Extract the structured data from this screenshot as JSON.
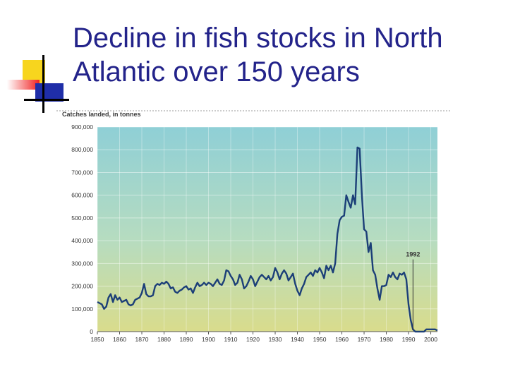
{
  "slide": {
    "title_line1": "Decline in fish stocks in North",
    "title_line2": "Atlantic over 150 years"
  },
  "colors": {
    "title": "#23238a",
    "series_line": "#1c3f78",
    "plot_top": "#8fcfd6",
    "plot_mid": "#b6dcc0",
    "plot_bottom": "#d9dc8c"
  },
  "chart_data": {
    "type": "line",
    "ylabel": "Catches landed, in tonnes",
    "xlabel": "",
    "xlim": [
      1850,
      2003
    ],
    "ylim": [
      0,
      900000
    ],
    "x_ticks": [
      "1850",
      "1860",
      "1870",
      "1880",
      "1890",
      "1900",
      "1910",
      "1920",
      "1930",
      "1940",
      "1950",
      "1960",
      "1970",
      "1980",
      "1990",
      "2000"
    ],
    "x_tick_values": [
      1850,
      1860,
      1870,
      1880,
      1890,
      1900,
      1910,
      1920,
      1930,
      1940,
      1950,
      1960,
      1970,
      1980,
      1990,
      2000
    ],
    "y_ticks": [
      "0",
      "100,000",
      "200,000",
      "300,000",
      "400,000",
      "500,000",
      "600,000",
      "700,000",
      "800,000",
      "900,000"
    ],
    "y_tick_values": [
      0,
      100000,
      200000,
      300000,
      400000,
      500000,
      600000,
      700000,
      800000,
      900000
    ],
    "grid": true,
    "annotations": [
      {
        "text": "1992",
        "x": 1992,
        "y": 330000
      }
    ],
    "series": [
      {
        "x": [
          1850,
          1851,
          1852,
          1853,
          1854,
          1855,
          1856,
          1857,
          1858,
          1859,
          1860,
          1861,
          1862,
          1863,
          1864,
          1865,
          1866,
          1867,
          1868,
          1869,
          1870,
          1871,
          1872,
          1873,
          1874,
          1875,
          1876,
          1877,
          1878,
          1879,
          1880,
          1881,
          1882,
          1883,
          1884,
          1885,
          1886,
          1887,
          1888,
          1889,
          1890,
          1891,
          1892,
          1893,
          1894,
          1895,
          1896,
          1897,
          1898,
          1899,
          1900,
          1901,
          1902,
          1903,
          1904,
          1905,
          1906,
          1907,
          1908,
          1909,
          1910,
          1911,
          1912,
          1913,
          1914,
          1915,
          1916,
          1917,
          1918,
          1919,
          1920,
          1921,
          1922,
          1923,
          1924,
          1925,
          1926,
          1927,
          1928,
          1929,
          1930,
          1931,
          1932,
          1933,
          1934,
          1935,
          1936,
          1937,
          1938,
          1939,
          1940,
          1941,
          1942,
          1943,
          1944,
          1945,
          1946,
          1947,
          1948,
          1949,
          1950,
          1951,
          1952,
          1953,
          1954,
          1955,
          1956,
          1957,
          1958,
          1959,
          1960,
          1961,
          1962,
          1963,
          1964,
          1965,
          1966,
          1967,
          1968,
          1969,
          1970,
          1971,
          1972,
          1973,
          1974,
          1975,
          1976,
          1977,
          1978,
          1979,
          1980,
          1981,
          1982,
          1983,
          1984,
          1985,
          1986,
          1987,
          1988,
          1989,
          1990,
          1991,
          1992,
          1993,
          1994,
          1995,
          1996,
          1997,
          1998,
          1999,
          2000,
          2001,
          2002,
          2003
        ],
        "y": [
          130000,
          125000,
          120000,
          100000,
          110000,
          150000,
          165000,
          130000,
          160000,
          140000,
          150000,
          130000,
          135000,
          140000,
          120000,
          115000,
          120000,
          140000,
          145000,
          150000,
          170000,
          210000,
          165000,
          155000,
          155000,
          160000,
          200000,
          210000,
          205000,
          215000,
          210000,
          220000,
          210000,
          190000,
          195000,
          175000,
          170000,
          180000,
          185000,
          195000,
          200000,
          185000,
          190000,
          170000,
          195000,
          215000,
          200000,
          205000,
          215000,
          205000,
          215000,
          210000,
          200000,
          215000,
          230000,
          210000,
          205000,
          225000,
          270000,
          265000,
          245000,
          230000,
          205000,
          215000,
          250000,
          230000,
          190000,
          200000,
          220000,
          245000,
          230000,
          200000,
          220000,
          240000,
          250000,
          240000,
          230000,
          245000,
          225000,
          240000,
          280000,
          260000,
          230000,
          255000,
          270000,
          255000,
          225000,
          240000,
          255000,
          210000,
          180000,
          160000,
          190000,
          210000,
          240000,
          250000,
          260000,
          245000,
          270000,
          260000,
          280000,
          260000,
          235000,
          290000,
          270000,
          290000,
          260000,
          300000,
          430000,
          490000,
          505000,
          510000,
          600000,
          570000,
          545000,
          600000,
          560000,
          810000,
          805000,
          600000,
          450000,
          440000,
          350000,
          390000,
          270000,
          250000,
          190000,
          140000,
          200000,
          200000,
          205000,
          250000,
          240000,
          260000,
          240000,
          230000,
          255000,
          250000,
          260000,
          230000,
          120000,
          50000,
          10000,
          0,
          0,
          0,
          0,
          0,
          10000,
          10000,
          10000,
          10000,
          10000,
          5000
        ]
      }
    ]
  }
}
